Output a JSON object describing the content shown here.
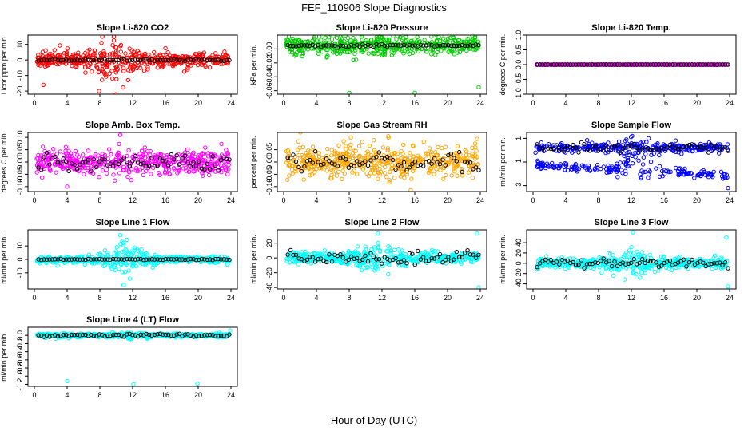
{
  "title": "FEF_110906  Slope Diagnostics",
  "x_axis_label": "Hour of Day (UTC)",
  "colors": {
    "background": "#ffffff",
    "reference_points": "#000000"
  },
  "chart_data": [
    {
      "type": "scatter",
      "title": "Slope Li-820 CO2",
      "xlabel": "",
      "ylabel": "Licor ppm per min.",
      "xlim": [
        0,
        24
      ],
      "xticks": [
        0,
        4,
        8,
        12,
        16,
        20,
        24
      ],
      "ylim": [
        -22,
        16
      ],
      "yticks": [
        -20,
        -10,
        0,
        10
      ],
      "color": "#ff0000",
      "ref_level": 0,
      "spread": 4,
      "spread_peak": 12,
      "peak_center": 10,
      "ref_spread": 0.6,
      "outliers": [
        [
          7.9,
          -20
        ],
        [
          8.3,
          15
        ],
        [
          1.1,
          -16
        ]
      ]
    },
    {
      "type": "scatter",
      "title": "Slope Li-820 Pressure",
      "xlabel": "",
      "ylabel": "kPa per min.",
      "xlim": [
        0,
        24
      ],
      "xticks": [
        0,
        4,
        8,
        12,
        16,
        20,
        24
      ],
      "ylim": [
        -0.065,
        0.02
      ],
      "yticks": [
        -0.06,
        -0.04,
        -0.02,
        0
      ],
      "ytick_labels": [
        "-0.06",
        "-0.04",
        "-0.02",
        "0.00"
      ],
      "color": "#00cc00",
      "ref_level": 0.005,
      "spread": 0.012,
      "spread_peak": 0.012,
      "peak_center": 12,
      "ref_spread": 0.002,
      "outliers": [
        [
          8,
          -0.063
        ],
        [
          16,
          -0.063
        ],
        [
          23.8,
          -0.055
        ]
      ]
    },
    {
      "type": "scatter",
      "title": "Slope Li-820 Temp.",
      "xlabel": "",
      "ylabel": "degrees C per min.",
      "xlim": [
        0,
        24
      ],
      "xticks": [
        0,
        4,
        8,
        12,
        16,
        20,
        24
      ],
      "ylim": [
        -1,
        1
      ],
      "yticks": [
        -1,
        -0.5,
        0,
        0.5,
        1
      ],
      "ytick_labels": [
        "-1.0",
        "-0.5",
        "0.0",
        "0.5",
        "1.0"
      ],
      "color": "#ff00ff",
      "ref_level": 0,
      "spread": 0.005,
      "spread_peak": 0.005,
      "peak_center": 12,
      "ref_spread": 0.002,
      "outliers": []
    },
    {
      "type": "scatter",
      "title": "Slope Amb. Box Temp.",
      "xlabel": "",
      "ylabel": "degrees C per min.",
      "xlim": [
        0,
        24
      ],
      "xticks": [
        0,
        4,
        8,
        12,
        16,
        20,
        24
      ],
      "ylim": [
        -0.12,
        0.12
      ],
      "yticks": [
        -0.1,
        -0.05,
        0,
        0.05,
        0.1
      ],
      "ytick_labels": [
        "-0.10",
        "-0.05",
        "0.00",
        "0.05",
        "0.10"
      ],
      "color": "#ff00ff",
      "ref_level": 0,
      "spread": 0.04,
      "spread_peak": 0.05,
      "peak_center": 12,
      "ref_spread": 0.03,
      "outliers": [
        [
          10.5,
          0.11
        ],
        [
          4,
          -0.1
        ]
      ]
    },
    {
      "type": "scatter",
      "title": "Slope Gas Stream RH",
      "xlabel": "",
      "ylabel": "percent per min.",
      "xlim": [
        0,
        24
      ],
      "xticks": [
        0,
        4,
        8,
        12,
        16,
        20,
        24
      ],
      "ylim": [
        -0.12,
        0.12
      ],
      "yticks": [
        -0.1,
        -0.05,
        0,
        0.05
      ],
      "ytick_labels": [
        "-0.10",
        "-0.05",
        "0.00",
        "0.05"
      ],
      "color": "#ffa500",
      "ref_level": 0,
      "spread": 0.05,
      "spread_peak": 0.06,
      "peak_center": 12,
      "ref_spread": 0.04,
      "outliers": [
        [
          15.5,
          -0.115
        ],
        [
          8.2,
          0.1
        ]
      ]
    },
    {
      "type": "scatter",
      "title": "Slope Sample Flow",
      "xlabel": "",
      "ylabel": "ml/min per min.",
      "xlim": [
        0,
        24
      ],
      "xticks": [
        0,
        4,
        8,
        12,
        16,
        20,
        24
      ],
      "ylim": [
        -3.5,
        1.5
      ],
      "yticks": [
        -3,
        -1,
        1
      ],
      "ytick_labels": [
        "-3",
        "-1",
        "1"
      ],
      "color": "#0000ff",
      "ref_level": 0.2,
      "spread": 0.3,
      "spread_peak": 0.9,
      "peak_center": 13,
      "ref_spread": 0.4,
      "outliers": [
        [
          23.8,
          -3.2
        ],
        [
          12.1,
          1.2
        ]
      ],
      "second_band": -1.2
    },
    {
      "type": "scatter",
      "title": "Slope Line 1 Flow",
      "xlabel": "",
      "ylabel": "ml/min per min.",
      "xlim": [
        0,
        24
      ],
      "xticks": [
        0,
        4,
        8,
        12,
        16,
        20,
        24
      ],
      "ylim": [
        -22,
        22
      ],
      "yticks": [
        -10,
        0,
        10
      ],
      "ytick_labels": [
        "-10",
        "0",
        "10"
      ],
      "color": "#00ffff",
      "ref_level": 0,
      "spread": 2,
      "spread_peak": 11,
      "peak_center": 11,
      "ref_spread": 0.3,
      "outliers": [
        [
          10.5,
          18
        ],
        [
          10.9,
          -19
        ]
      ]
    },
    {
      "type": "scatter",
      "title": "Slope Line 2 Flow",
      "xlabel": "",
      "ylabel": "ml/min per min.",
      "xlim": [
        0,
        24
      ],
      "xticks": [
        0,
        4,
        8,
        12,
        16,
        20,
        24
      ],
      "ylim": [
        -42,
        38
      ],
      "yticks": [
        -40,
        -20,
        0,
        20
      ],
      "ytick_labels": [
        "-40",
        "-20",
        "0",
        "20"
      ],
      "color": "#00ffff",
      "ref_level": 0,
      "spread": 6,
      "spread_peak": 18,
      "peak_center": 12,
      "ref_spread": 8,
      "outliers": [
        [
          23.8,
          -40
        ],
        [
          23.6,
          33
        ],
        [
          11.5,
          33
        ]
      ]
    },
    {
      "type": "scatter",
      "title": "Slope Line 3 Flow",
      "xlabel": "",
      "ylabel": "ml/min per min.",
      "xlim": [
        0,
        24
      ],
      "xticks": [
        0,
        4,
        8,
        12,
        16,
        20,
        24
      ],
      "ylim": [
        -50,
        65
      ],
      "yticks": [
        -40,
        -20,
        0,
        20,
        40
      ],
      "ytick_labels": [
        "-40",
        "-20",
        "0",
        "20",
        "40"
      ],
      "color": "#00ffff",
      "ref_level": 0,
      "spread": 8,
      "spread_peak": 25,
      "peak_center": 12,
      "ref_spread": 8,
      "outliers": [
        [
          12.2,
          60
        ],
        [
          23.6,
          50
        ],
        [
          23.8,
          -45
        ]
      ]
    },
    {
      "type": "scatter",
      "title": "Slope Line 4 (LT) Flow",
      "xlabel": "",
      "ylabel": "ml/min per min.",
      "xlim": [
        0,
        24
      ],
      "xticks": [
        0,
        4,
        8,
        12,
        16,
        20,
        24
      ],
      "ylim": [
        -1.25,
        0.2
      ],
      "yticks": [
        -1.2,
        -1,
        -0.8,
        -0.6,
        -0.4,
        -0.2,
        0
      ],
      "ytick_labels": [
        "-1.2",
        "-1.0",
        "-0.8",
        "-0.6",
        "-0.4",
        "-0.2",
        "0.0"
      ],
      "color": "#00ffff",
      "ref_level": 0,
      "spread": 0.04,
      "spread_peak": 0.06,
      "peak_center": 12,
      "ref_spread": 0.04,
      "outliers": [
        [
          4,
          -1.12
        ],
        [
          12.1,
          -1.2
        ],
        [
          19.9,
          -1.18
        ],
        [
          23.9,
          0.12
        ]
      ]
    }
  ]
}
